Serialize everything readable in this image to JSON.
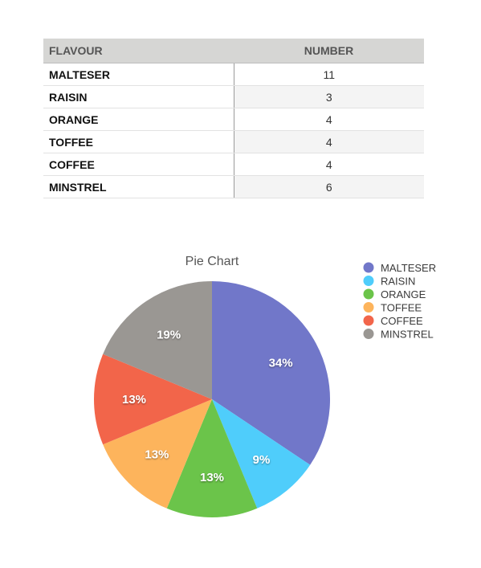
{
  "table": {
    "headers": [
      "FLAVOUR",
      "NUMBER"
    ],
    "rows": [
      {
        "flavour": "MALTESER",
        "number": "11"
      },
      {
        "flavour": "RAISIN",
        "number": "3"
      },
      {
        "flavour": "ORANGE",
        "number": "4"
      },
      {
        "flavour": "TOFFEE",
        "number": "4"
      },
      {
        "flavour": "COFFEE",
        "number": "4"
      },
      {
        "flavour": "MINSTREL",
        "number": "6"
      }
    ]
  },
  "chart_data": {
    "type": "pie",
    "title": "Pie Chart",
    "categories": [
      "MALTESER",
      "RAISIN",
      "ORANGE",
      "TOFFEE",
      "COFFEE",
      "MINSTREL"
    ],
    "values": [
      11,
      3,
      4,
      4,
      4,
      6
    ],
    "percent_labels": [
      "34%",
      "9%",
      "13%",
      "13%",
      "13%",
      "19%"
    ],
    "colors": [
      "#7177c9",
      "#4fcdfb",
      "#6bc44a",
      "#fdb45c",
      "#f2654a",
      "#9a9793"
    ],
    "legend_position": "top-right"
  }
}
